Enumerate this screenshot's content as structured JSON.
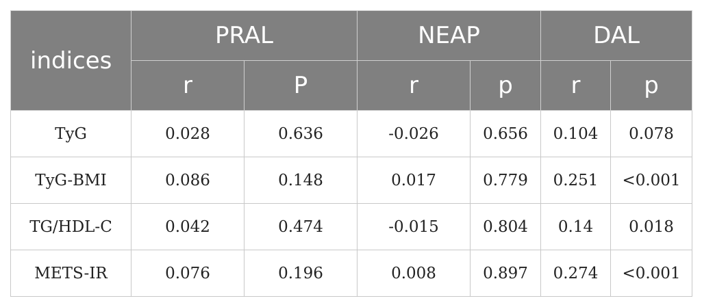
{
  "header": {
    "corner": "indices",
    "groups": [
      "PRAL",
      "NEAP",
      "DAL"
    ],
    "subheaders": [
      "r",
      "P",
      "r",
      "p",
      "r",
      "p"
    ]
  },
  "rows": [
    {
      "label": "TyG",
      "cells": [
        "0.028",
        "0.636",
        "-0.026",
        "0.656",
        "0.104",
        "0.078"
      ]
    },
    {
      "label": "TyG-BMI",
      "cells": [
        "0.086",
        "0.148",
        "0.017",
        "0.779",
        "0.251",
        "<0.001"
      ]
    },
    {
      "label": "TG/HDL-C",
      "cells": [
        "0.042",
        "0.474",
        "-0.015",
        "0.804",
        "0.14",
        "0.018"
      ]
    },
    {
      "label": "METS-IR",
      "cells": [
        "0.076",
        "0.196",
        "0.008",
        "0.897",
        "0.274",
        "<0.001"
      ]
    }
  ]
}
